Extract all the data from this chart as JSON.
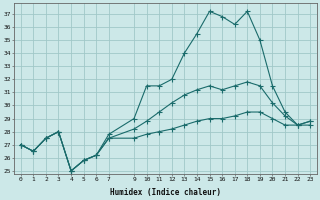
{
  "xlabel": "Humidex (Indice chaleur)",
  "background_color": "#cce8e8",
  "grid_color": "#a0c8c8",
  "line_color": "#1a6b6b",
  "x_ticks": [
    0,
    1,
    2,
    3,
    4,
    5,
    6,
    7,
    9,
    10,
    11,
    12,
    13,
    14,
    15,
    16,
    17,
    18,
    19,
    20,
    21,
    22,
    23
  ],
  "ylim": [
    24.8,
    37.8
  ],
  "xlim": [
    -0.5,
    23.5
  ],
  "yticks": [
    25,
    26,
    27,
    28,
    29,
    30,
    31,
    32,
    33,
    34,
    35,
    36,
    37
  ],
  "series1_x": [
    0,
    1,
    2,
    3,
    4,
    5,
    6,
    7,
    9,
    10,
    11,
    12,
    13,
    14,
    15,
    16,
    17,
    18,
    19,
    20,
    21,
    22,
    23
  ],
  "series1_y": [
    27.0,
    26.5,
    27.5,
    28.0,
    25.0,
    25.8,
    26.2,
    27.8,
    29.0,
    31.5,
    31.5,
    32.0,
    34.0,
    35.5,
    37.2,
    36.8,
    36.2,
    37.2,
    35.0,
    31.5,
    29.5,
    28.5,
    28.5
  ],
  "series2_x": [
    0,
    1,
    2,
    3,
    4,
    5,
    6,
    7,
    9,
    10,
    11,
    12,
    13,
    14,
    15,
    16,
    17,
    18,
    19,
    20,
    21,
    22,
    23
  ],
  "series2_y": [
    27.0,
    26.5,
    27.5,
    28.0,
    25.0,
    25.8,
    26.2,
    27.5,
    28.2,
    28.8,
    29.5,
    30.2,
    30.8,
    31.2,
    31.5,
    31.2,
    31.5,
    31.8,
    31.5,
    30.2,
    29.2,
    28.5,
    28.8
  ],
  "series3_x": [
    0,
    1,
    2,
    3,
    4,
    5,
    6,
    7,
    9,
    10,
    11,
    12,
    13,
    14,
    15,
    16,
    17,
    18,
    19,
    20,
    21,
    22,
    23
  ],
  "series3_y": [
    27.0,
    26.5,
    27.5,
    28.0,
    25.0,
    25.8,
    26.2,
    27.5,
    27.5,
    27.8,
    28.0,
    28.2,
    28.5,
    28.8,
    29.0,
    29.0,
    29.2,
    29.5,
    29.5,
    29.0,
    28.5,
    28.5,
    28.8
  ]
}
